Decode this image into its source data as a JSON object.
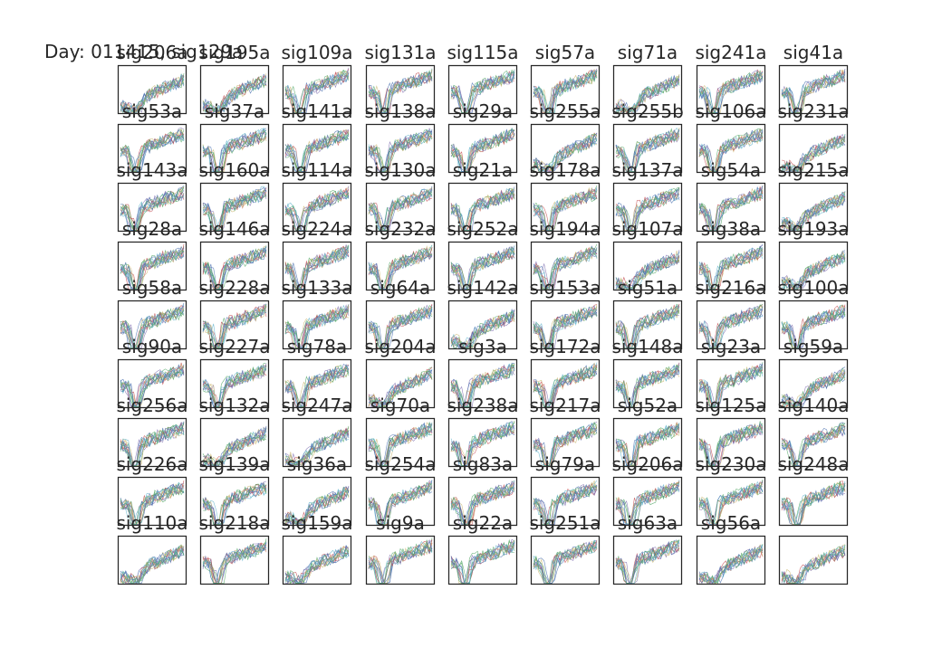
{
  "figure": {
    "suptitle": "Day: 011415, sig129a"
  },
  "chart_data": {
    "type": "line",
    "grid": {
      "rows": 9,
      "cols": 9
    },
    "panel_titles": [
      "sig206a",
      "sig195a",
      "sig109a",
      "sig131a",
      "sig115a",
      "sig57a",
      "sig71a",
      "sig241a",
      "sig41a",
      "sig53a",
      "sig37a",
      "sig141a",
      "sig138a",
      "sig29a",
      "sig255a",
      "sig255b",
      "sig106a",
      "sig231a",
      "sig143a",
      "sig160a",
      "sig114a",
      "sig130a",
      "sig21a",
      "sig178a",
      "sig137a",
      "sig54a",
      "sig215a",
      "sig28a",
      "sig146a",
      "sig224a",
      "sig232a",
      "sig252a",
      "sig194a",
      "sig107a",
      "sig38a",
      "sig193a",
      "sig58a",
      "sig228a",
      "sig133a",
      "sig64a",
      "sig142a",
      "sig153a",
      "sig51a",
      "sig216a",
      "sig100a",
      "sig90a",
      "sig227a",
      "sig78a",
      "sig204a",
      "sig3a",
      "sig172a",
      "sig148a",
      "sig23a",
      "sig59a",
      "sig256a",
      "sig132a",
      "sig247a",
      "sig70a",
      "sig238a",
      "sig217a",
      "sig52a",
      "sig125a",
      "sig140a",
      "sig226a",
      "sig139a",
      "sig36a",
      "sig254a",
      "sig83a",
      "sig79a",
      "sig206a",
      "sig230a",
      "sig248a",
      "sig110a",
      "sig218a",
      "sig159a",
      "sig9a",
      "sig22a",
      "sig251a",
      "sig63a",
      "sig56a",
      ""
    ],
    "panel_title_mode": "title placed above its panel; first panel title overlaps the figure suptitle",
    "traces_per_panel": "many overlaid waveform traces (approximate)",
    "series_colors": [
      "#4c72b0",
      "#55a868",
      "#c44e52",
      "#8172b2",
      "#ccb974",
      "#64b5cd"
    ],
    "axes": {
      "ticks": false,
      "xlim": [
        0,
        1
      ],
      "ylim": [
        0,
        1
      ]
    }
  }
}
